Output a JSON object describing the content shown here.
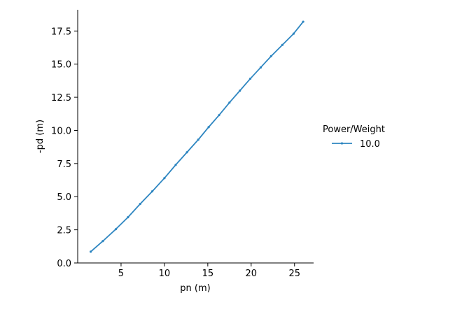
{
  "chart_data": {
    "type": "line",
    "title": "",
    "xlabel": "pn (m)",
    "ylabel": "-pd (m)",
    "xlim": [
      0.0,
      27.2
    ],
    "ylim": [
      0.0,
      19.1
    ],
    "xticks": [
      5,
      10,
      15,
      20,
      25
    ],
    "yticks": [
      0.0,
      2.5,
      5.0,
      7.5,
      10.0,
      12.5,
      15.0,
      17.5
    ],
    "xtick_labels": [
      "5",
      "10",
      "15",
      "20",
      "25"
    ],
    "ytick_labels": [
      "0.0",
      "2.5",
      "5.0",
      "7.5",
      "10.0",
      "12.5",
      "15.0",
      "17.5"
    ],
    "grid": false,
    "legend": {
      "title": "Power/Weight",
      "placement": "right"
    },
    "series": [
      {
        "name": "10.0",
        "color": "#2e86c1",
        "marker": "point",
        "x": [
          1.5,
          2.9,
          4.4,
          5.8,
          7.2,
          8.6,
          10.0,
          11.3,
          12.6,
          13.9,
          15.1,
          16.3,
          17.5,
          18.7,
          19.9,
          21.1,
          22.3,
          23.6,
          24.9,
          26.0
        ],
        "y": [
          0.85,
          1.65,
          2.55,
          3.45,
          4.45,
          5.4,
          6.4,
          7.4,
          8.35,
          9.3,
          10.25,
          11.15,
          12.1,
          13.0,
          13.9,
          14.75,
          15.6,
          16.45,
          17.3,
          18.2
        ]
      }
    ]
  }
}
